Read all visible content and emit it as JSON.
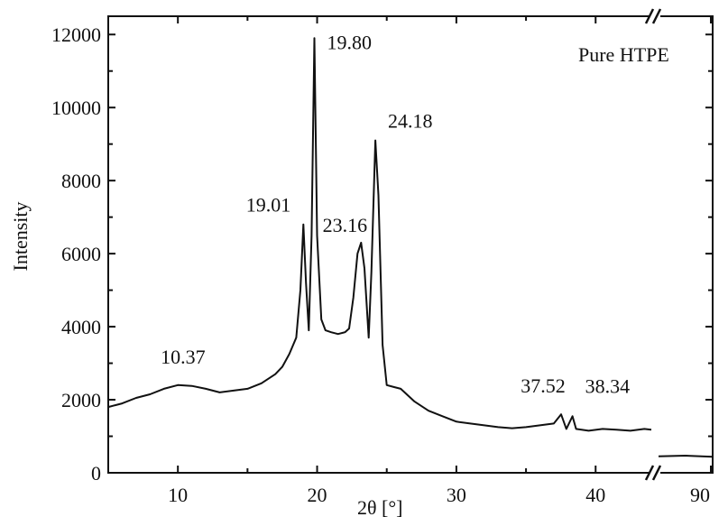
{
  "chart_data": {
    "type": "line",
    "title": "",
    "legend": "Pure  HTPE",
    "xlabel": "2θ [°]",
    "ylabel": "Intensity",
    "x_axis_break": {
      "from": 44,
      "to": 90
    },
    "xlim": [
      5,
      44
    ],
    "ylim": [
      0,
      12500
    ],
    "x_ticks": [
      10,
      20,
      30,
      40,
      90
    ],
    "y_ticks": [
      0,
      2000,
      4000,
      6000,
      8000,
      10000,
      12000
    ],
    "grid": false,
    "series": [
      {
        "color": "#111111",
        "points": [
          [
            5,
            1800
          ],
          [
            6,
            1900
          ],
          [
            7,
            2050
          ],
          [
            8,
            2150
          ],
          [
            9,
            2300
          ],
          [
            10,
            2400
          ],
          [
            11,
            2380
          ],
          [
            12,
            2300
          ],
          [
            13,
            2200
          ],
          [
            14,
            2250
          ],
          [
            15,
            2300
          ],
          [
            16,
            2450
          ],
          [
            17,
            2700
          ],
          [
            17.5,
            2900
          ],
          [
            18,
            3250
          ],
          [
            18.5,
            3700
          ],
          [
            18.8,
            5000
          ],
          [
            19.01,
            6800
          ],
          [
            19.2,
            5200
          ],
          [
            19.4,
            3900
          ],
          [
            19.6,
            6500
          ],
          [
            19.8,
            11900
          ],
          [
            20.0,
            6500
          ],
          [
            20.3,
            4200
          ],
          [
            20.6,
            3900
          ],
          [
            21.0,
            3850
          ],
          [
            21.5,
            3800
          ],
          [
            22.0,
            3850
          ],
          [
            22.3,
            3950
          ],
          [
            22.6,
            4800
          ],
          [
            22.9,
            6000
          ],
          [
            23.16,
            6300
          ],
          [
            23.4,
            5600
          ],
          [
            23.7,
            3700
          ],
          [
            23.9,
            5500
          ],
          [
            24.18,
            9100
          ],
          [
            24.4,
            7600
          ],
          [
            24.7,
            3500
          ],
          [
            25.0,
            2400
          ],
          [
            25.5,
            2350
          ],
          [
            26.0,
            2300
          ],
          [
            27.0,
            1950
          ],
          [
            28.0,
            1700
          ],
          [
            29.0,
            1550
          ],
          [
            30.0,
            1400
          ],
          [
            31.0,
            1350
          ],
          [
            32.0,
            1300
          ],
          [
            33.0,
            1250
          ],
          [
            34.0,
            1220
          ],
          [
            35.0,
            1250
          ],
          [
            36.0,
            1300
          ],
          [
            37.0,
            1350
          ],
          [
            37.52,
            1600
          ],
          [
            37.9,
            1200
          ],
          [
            38.34,
            1550
          ],
          [
            38.6,
            1200
          ],
          [
            39.5,
            1150
          ],
          [
            40.5,
            1200
          ],
          [
            41.5,
            1180
          ],
          [
            42.5,
            1150
          ],
          [
            43.5,
            1200
          ],
          [
            44,
            1180
          ]
        ],
        "points_after_break": [
          [
            86,
            450
          ],
          [
            88,
            470
          ],
          [
            90,
            440
          ]
        ]
      }
    ],
    "peak_labels": [
      {
        "x": 10.37,
        "y": 2400,
        "text": "10.37"
      },
      {
        "x": 19.01,
        "y": 6800,
        "text": "19.01"
      },
      {
        "x": 19.8,
        "y": 11900,
        "text": "19.80"
      },
      {
        "x": 23.16,
        "y": 6300,
        "text": "23.16"
      },
      {
        "x": 24.18,
        "y": 9100,
        "text": "24.18"
      },
      {
        "x": 37.52,
        "y": 1600,
        "text": "37.52"
      },
      {
        "x": 38.34,
        "y": 1550,
        "text": "38.34"
      }
    ]
  }
}
